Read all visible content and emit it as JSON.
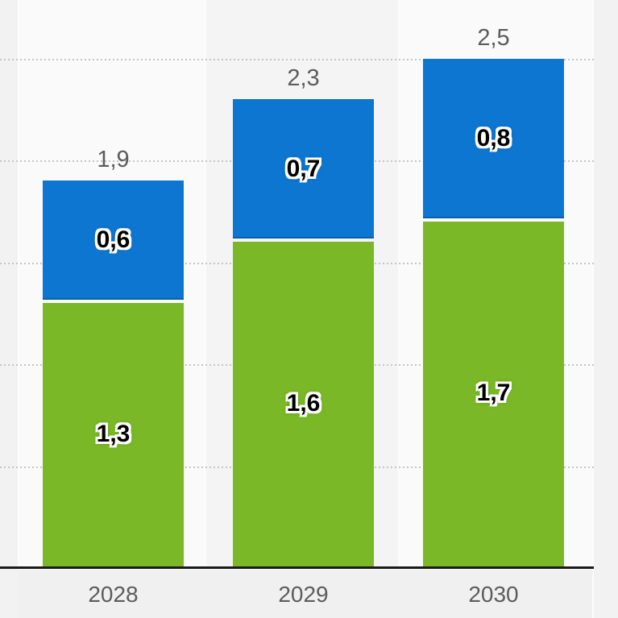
{
  "chart_data": {
    "type": "bar",
    "variant": "stacked-vertical",
    "categories": [
      "2028",
      "2029",
      "2030"
    ],
    "series": [
      {
        "name": "series-green",
        "color": "#7ab827",
        "values": [
          1.3,
          1.6,
          1.7
        ],
        "value_labels": [
          "1,3",
          "1,6",
          "1,7"
        ]
      },
      {
        "name": "series-blue",
        "color": "#0d76d1",
        "values": [
          0.6,
          0.7,
          0.8
        ],
        "value_labels": [
          "0,6",
          "0,7",
          "0,8"
        ]
      }
    ],
    "totals": [
      1.9,
      2.3,
      2.5
    ],
    "total_labels": [
      "1,9",
      "2,3",
      "2,5"
    ],
    "ylim": [
      0,
      2.5
    ],
    "gridline_step": 0.5,
    "grid": "horizontal-dotted",
    "legend": "none",
    "decimal_separator": ","
  },
  "colors": {
    "green": "#7ab827",
    "blue": "#0d76d1",
    "blue_bottom_edge": "#0b5fa5",
    "axis_line": "#1a1a1a",
    "gridline": "#c5c5c5",
    "label_gray": "#5c5c5c",
    "page_bg": "#fafafa",
    "margin_bg": "#f2f2f2",
    "alt_column_bg": "#f4f4f4",
    "footer_bg": "#f0f0f0"
  }
}
